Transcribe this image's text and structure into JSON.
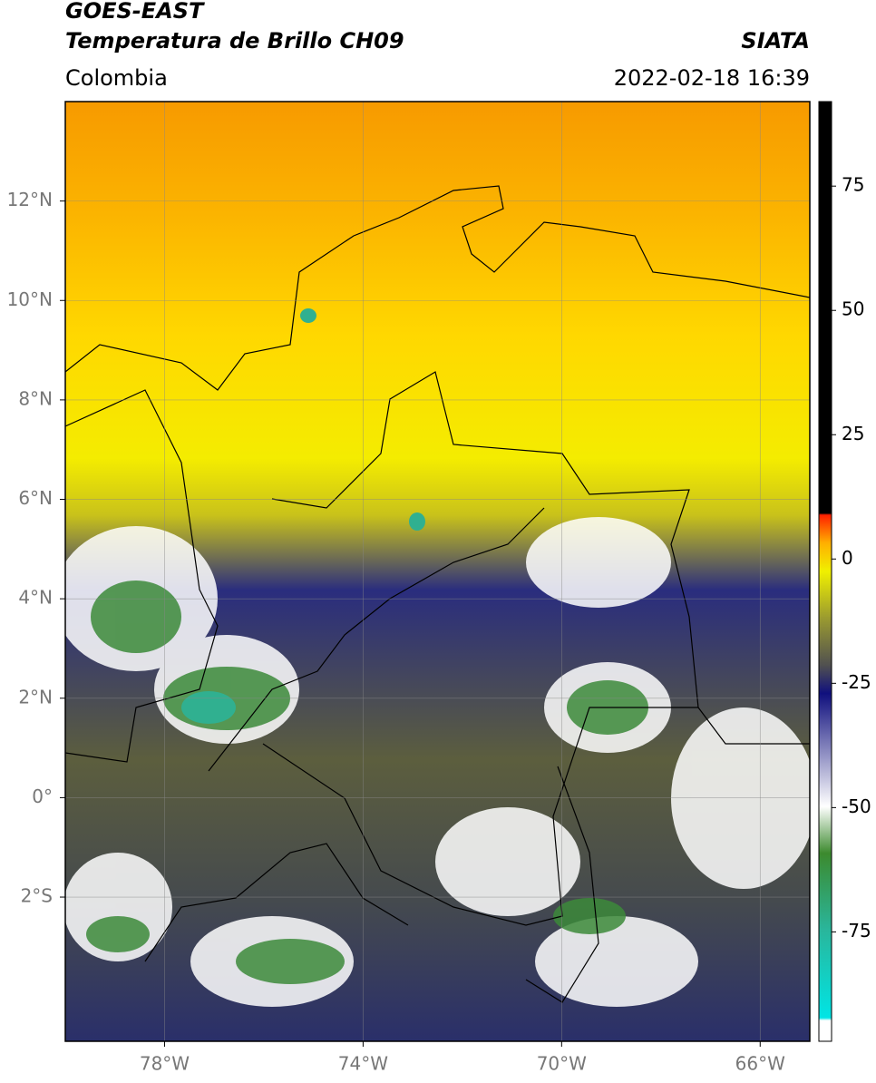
{
  "header": {
    "title": "GOES-EAST",
    "subtitle": "Temperatura de Brillo CH09",
    "region": "Colombia",
    "source": "SIATA",
    "datetime": "2022-02-18 16:39"
  },
  "map": {
    "lonlim": [
      -80,
      -65
    ],
    "latlim": [
      -4.9,
      14
    ],
    "grid": true,
    "lonticks": [
      {
        "value": -78,
        "label": "78°W"
      },
      {
        "value": -74,
        "label": "74°W"
      },
      {
        "value": -70,
        "label": "70°W"
      },
      {
        "value": -66,
        "label": "66°W"
      }
    ],
    "latticks": [
      {
        "value": 12,
        "label": "12°N"
      },
      {
        "value": 10,
        "label": "10°N"
      },
      {
        "value": 8,
        "label": "8°N"
      },
      {
        "value": 6,
        "label": "6°N"
      },
      {
        "value": 4,
        "label": "4°N"
      },
      {
        "value": 2,
        "label": "2°N"
      },
      {
        "value": 0,
        "label": "0°"
      },
      {
        "value": -2,
        "label": "2°S"
      }
    ]
  },
  "colorbar": {
    "lim": [
      -97,
      92
    ],
    "ticks": [
      75,
      50,
      25,
      0,
      -25,
      -50,
      -75
    ]
  }
}
